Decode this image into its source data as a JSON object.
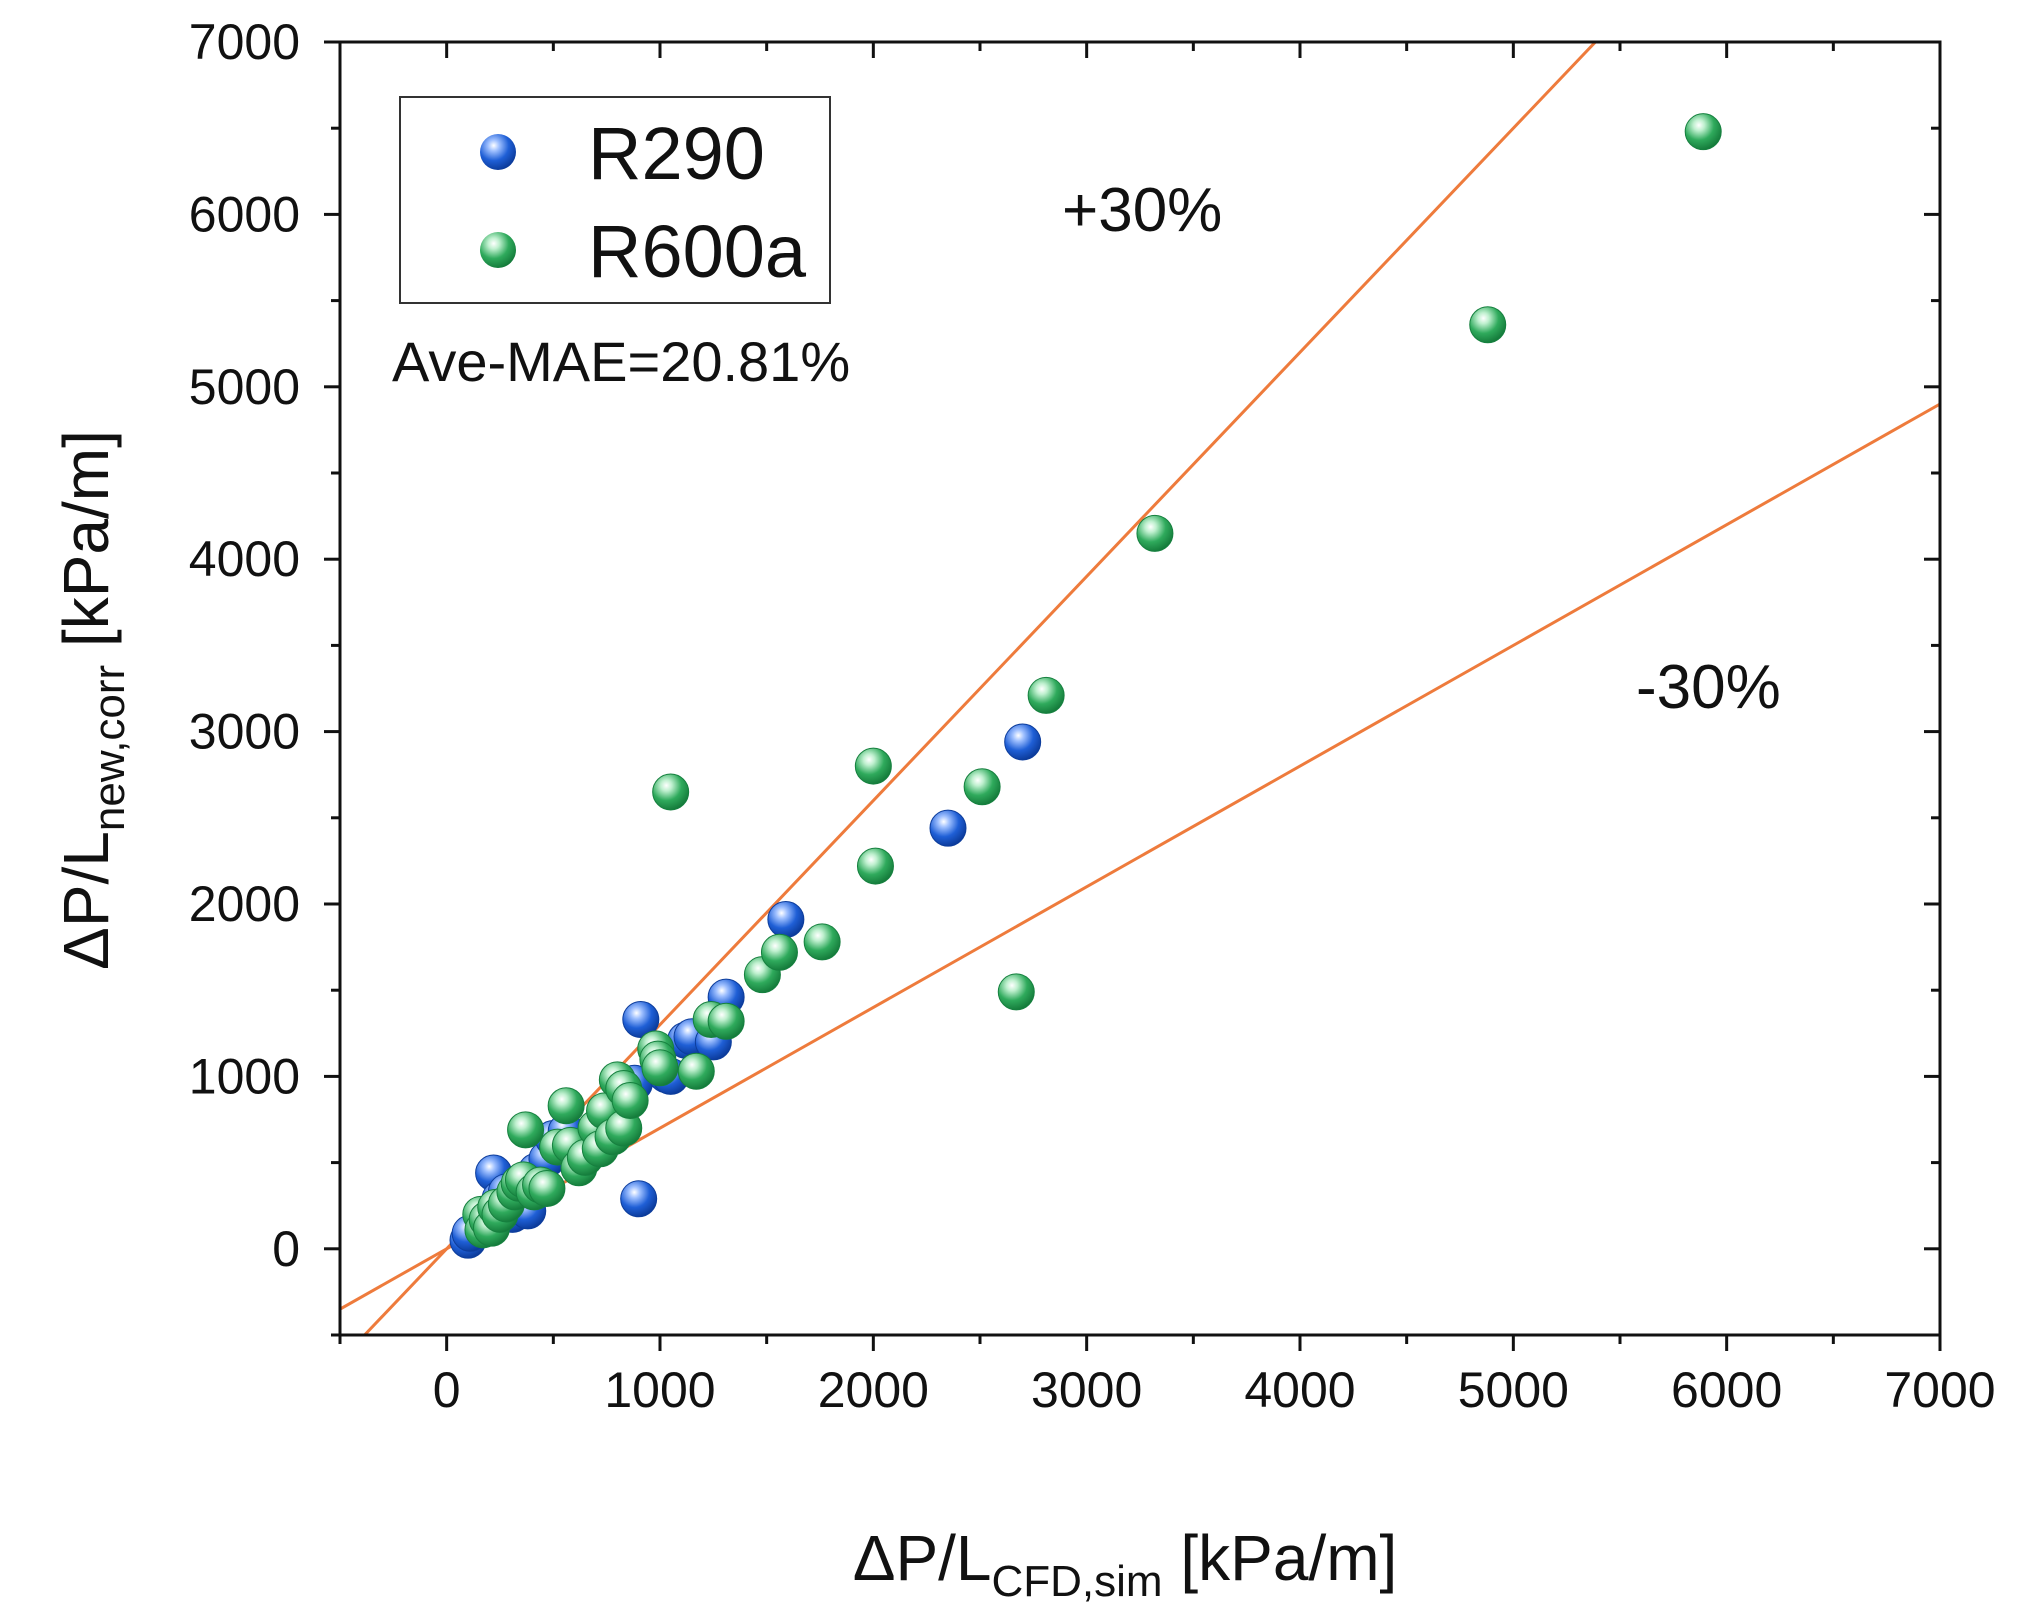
{
  "chart_data": {
    "type": "scatter",
    "xlabel": {
      "main": "ΔP/L",
      "sub": "CFD,sim",
      "unit": " [kPa/m]"
    },
    "ylabel": {
      "main": "ΔP/L",
      "sub": "new,corr",
      "unit": " [kPa/m]"
    },
    "xlim": [
      -500,
      7000
    ],
    "ylim": [
      -500,
      7000
    ],
    "x_ticks": [
      0,
      1000,
      2000,
      3000,
      4000,
      5000,
      6000,
      7000
    ],
    "y_ticks": [
      0,
      1000,
      2000,
      3000,
      4000,
      5000,
      6000,
      7000
    ],
    "legend": {
      "position": "top-left",
      "items": [
        "R290",
        "R600a"
      ]
    },
    "annotations": {
      "plus": "+30%",
      "minus": "-30%",
      "mae": "Ave-MAE=20.81%"
    },
    "reference_lines": [
      {
        "name": "+30%",
        "factor": 1.3
      },
      {
        "name": "-30%",
        "factor": 0.7
      }
    ],
    "colors": {
      "R290": "#1f5fd6",
      "R600a": "#2faa5c",
      "line": "#ee7b3c"
    },
    "series": [
      {
        "name": "R290",
        "points": [
          [
            100,
            50
          ],
          [
            110,
            90
          ],
          [
            180,
            130
          ],
          [
            220,
            440
          ],
          [
            250,
            290
          ],
          [
            280,
            330
          ],
          [
            310,
            200
          ],
          [
            350,
            250
          ],
          [
            380,
            220
          ],
          [
            420,
            450
          ],
          [
            470,
            520
          ],
          [
            500,
            640
          ],
          [
            560,
            680
          ],
          [
            850,
            950
          ],
          [
            880,
            960
          ],
          [
            910,
            1330
          ],
          [
            900,
            290
          ],
          [
            1030,
            1010
          ],
          [
            1050,
            1000
          ],
          [
            1120,
            1210
          ],
          [
            1150,
            1230
          ],
          [
            1250,
            1200
          ],
          [
            1310,
            1460
          ],
          [
            1590,
            1910
          ],
          [
            2350,
            2440
          ],
          [
            2700,
            2940
          ]
        ]
      },
      {
        "name": "R600a",
        "points": [
          [
            160,
            200
          ],
          [
            170,
            110
          ],
          [
            190,
            170
          ],
          [
            210,
            120
          ],
          [
            230,
            240
          ],
          [
            250,
            200
          ],
          [
            280,
            260
          ],
          [
            320,
            330
          ],
          [
            340,
            380
          ],
          [
            360,
            400
          ],
          [
            370,
            690
          ],
          [
            410,
            330
          ],
          [
            440,
            370
          ],
          [
            470,
            350
          ],
          [
            520,
            590
          ],
          [
            560,
            830
          ],
          [
            580,
            600
          ],
          [
            620,
            470
          ],
          [
            650,
            530
          ],
          [
            700,
            700
          ],
          [
            720,
            580
          ],
          [
            740,
            800
          ],
          [
            780,
            650
          ],
          [
            800,
            980
          ],
          [
            830,
            930
          ],
          [
            830,
            700
          ],
          [
            860,
            860
          ],
          [
            980,
            1160
          ],
          [
            990,
            1100
          ],
          [
            1000,
            1050
          ],
          [
            1050,
            2650
          ],
          [
            1170,
            1030
          ],
          [
            1240,
            1330
          ],
          [
            1310,
            1320
          ],
          [
            1480,
            1590
          ],
          [
            1560,
            1720
          ],
          [
            1760,
            1780
          ],
          [
            2000,
            2800
          ],
          [
            2010,
            2220
          ],
          [
            2510,
            2680
          ],
          [
            2670,
            1490
          ],
          [
            2810,
            3210
          ],
          [
            3320,
            4150
          ],
          [
            4880,
            5360
          ],
          [
            5890,
            6480
          ]
        ]
      }
    ]
  }
}
